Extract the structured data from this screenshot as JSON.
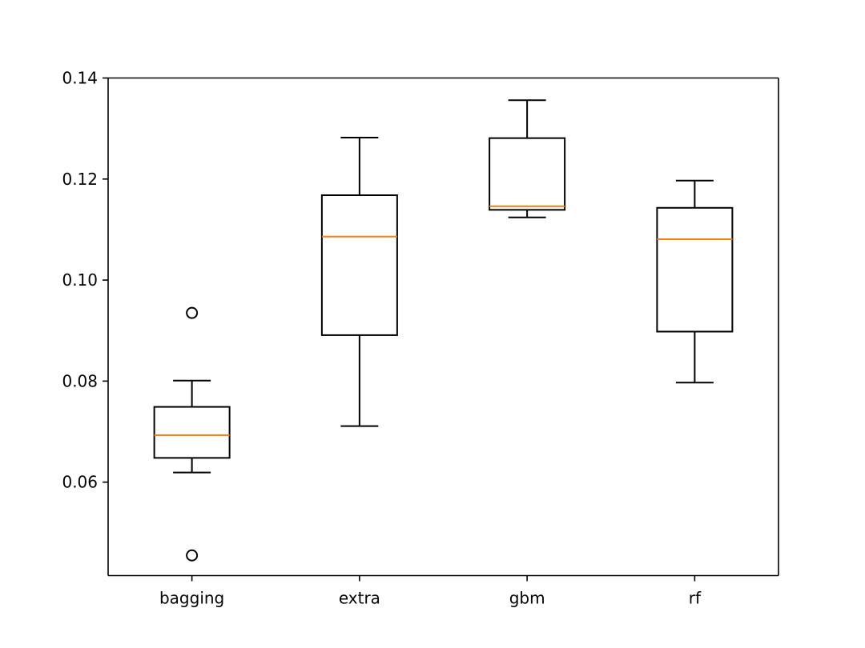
{
  "chart_data": {
    "type": "boxplot",
    "title": "",
    "xlabel": "",
    "ylabel": "",
    "ylim": [
      0.0415,
      0.14
    ],
    "yticks": [
      0.06,
      0.08,
      0.1,
      0.12,
      0.14
    ],
    "ytick_labels": [
      "0.06",
      "0.08",
      "0.10",
      "0.12",
      "0.14"
    ],
    "categories": [
      "bagging",
      "extra",
      "gbm",
      "rf"
    ],
    "boxes": [
      {
        "name": "bagging",
        "whisker_low": 0.0619,
        "q1": 0.0648,
        "median": 0.0693,
        "q3": 0.0749,
        "whisker_high": 0.0801,
        "outliers": [
          0.0935,
          0.0455
        ]
      },
      {
        "name": "extra",
        "whisker_low": 0.0711,
        "q1": 0.0891,
        "median": 0.1086,
        "q3": 0.1168,
        "whisker_high": 0.1282,
        "outliers": []
      },
      {
        "name": "gbm",
        "whisker_low": 0.1124,
        "q1": 0.1139,
        "median": 0.1146,
        "q3": 0.1281,
        "whisker_high": 0.1356,
        "outliers": []
      },
      {
        "name": "rf",
        "whisker_low": 0.0797,
        "q1": 0.0898,
        "median": 0.1081,
        "q3": 0.1143,
        "whisker_high": 0.1197,
        "outliers": []
      }
    ],
    "grid": false,
    "colors": {
      "box": "#000000",
      "median": "#ff7f0e",
      "axes": "#000000"
    }
  }
}
